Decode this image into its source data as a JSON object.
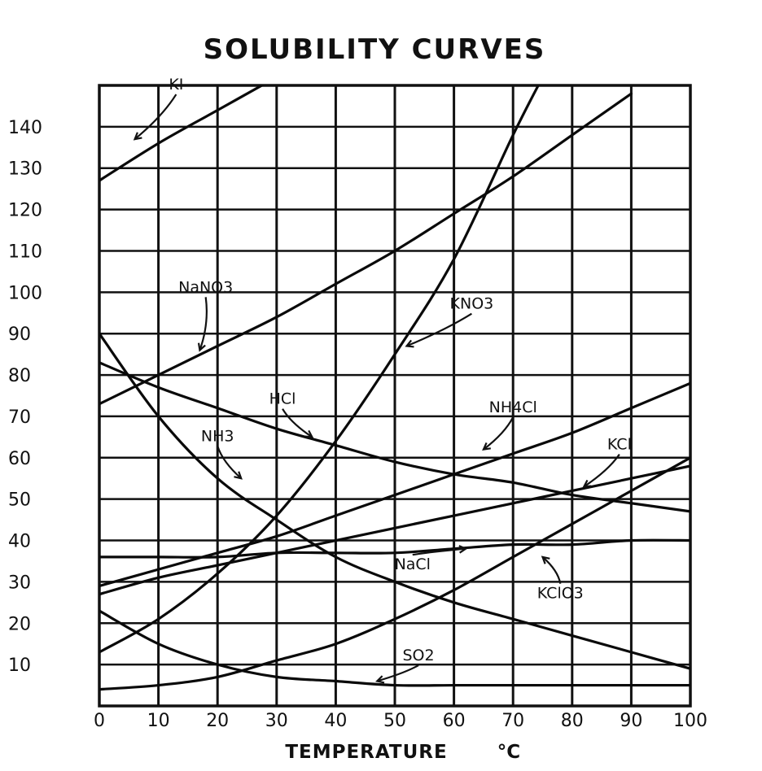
{
  "chart_data": {
    "type": "line",
    "title": "SOLUBILITY CURVES",
    "xlabel": "TEMPERATURE",
    "xunit": "°C",
    "ylabel": "",
    "xlim": [
      0,
      100
    ],
    "ylim": [
      0,
      150
    ],
    "grid": true,
    "x_ticks": [
      "0",
      "10",
      "20",
      "30",
      "40",
      "50",
      "60",
      "70",
      "80",
      "90",
      "100"
    ],
    "y_ticks": [
      {
        "value": 140,
        "label": "140"
      },
      {
        "value": 130,
        "label": "130"
      },
      {
        "value": 120,
        "label": "120"
      },
      {
        "value": 110,
        "label": "110"
      },
      {
        "value": 100,
        "label": "100"
      },
      {
        "value": 90,
        "label": "90"
      },
      {
        "value": 80,
        "label": "80"
      },
      {
        "value": 70,
        "label": "70"
      },
      {
        "value": 60,
        "label": "60"
      },
      {
        "value": 50,
        "label": "50"
      },
      {
        "value": 40,
        "label": "40"
      },
      {
        "value": 30,
        "label": "30"
      },
      {
        "value": 20,
        "label": "20"
      },
      {
        "value": 10,
        "label": "10"
      }
    ],
    "series": [
      {
        "name": "KI",
        "points": [
          [
            0,
            127
          ],
          [
            10,
            136
          ],
          [
            20,
            144
          ],
          [
            30,
            152
          ]
        ],
        "label_at": [
          13,
          149
        ],
        "arrow_to": [
          6,
          137
        ]
      },
      {
        "name": "NaNO3",
        "points": [
          [
            0,
            73
          ],
          [
            10,
            80
          ],
          [
            20,
            87
          ],
          [
            30,
            94
          ],
          [
            40,
            102
          ],
          [
            50,
            110
          ],
          [
            60,
            119
          ],
          [
            70,
            128
          ],
          [
            80,
            138
          ],
          [
            90,
            148
          ]
        ],
        "label_at": [
          18,
          100
        ],
        "arrow_to": [
          17,
          86
        ]
      },
      {
        "name": "KNO3",
        "points": [
          [
            0,
            13
          ],
          [
            10,
            21
          ],
          [
            20,
            32
          ],
          [
            30,
            46
          ],
          [
            40,
            64
          ],
          [
            50,
            85
          ],
          [
            60,
            108
          ],
          [
            70,
            138
          ],
          [
            75,
            152
          ]
        ],
        "label_at": [
          63,
          96
        ],
        "arrow_to": [
          52,
          87
        ]
      },
      {
        "name": "HCl",
        "points": [
          [
            0,
            83
          ],
          [
            10,
            77
          ],
          [
            20,
            72
          ],
          [
            30,
            67
          ],
          [
            40,
            63
          ],
          [
            50,
            59
          ],
          [
            60,
            56
          ],
          [
            70,
            54
          ],
          [
            80,
            51
          ],
          [
            90,
            49
          ],
          [
            100,
            47
          ]
        ],
        "label_at": [
          31,
          73
        ],
        "arrow_to": [
          36,
          65
        ]
      },
      {
        "name": "NH4Cl",
        "points": [
          [
            0,
            29
          ],
          [
            10,
            33
          ],
          [
            20,
            37
          ],
          [
            30,
            41
          ],
          [
            40,
            46
          ],
          [
            50,
            51
          ],
          [
            60,
            56
          ],
          [
            70,
            61
          ],
          [
            80,
            66
          ],
          [
            90,
            72
          ],
          [
            100,
            78
          ]
        ],
        "label_at": [
          70,
          71
        ],
        "arrow_to": [
          65,
          62
        ]
      },
      {
        "name": "KCl",
        "points": [
          [
            0,
            27
          ],
          [
            10,
            31
          ],
          [
            20,
            34
          ],
          [
            30,
            37
          ],
          [
            40,
            40
          ],
          [
            50,
            43
          ],
          [
            60,
            46
          ],
          [
            70,
            49
          ],
          [
            80,
            52
          ],
          [
            90,
            55
          ],
          [
            100,
            58
          ]
        ],
        "label_at": [
          88,
          62
        ],
        "arrow_to": [
          82,
          53
        ]
      },
      {
        "name": "NH3",
        "points": [
          [
            0,
            90
          ],
          [
            10,
            70
          ],
          [
            20,
            55
          ],
          [
            30,
            45
          ],
          [
            40,
            36
          ],
          [
            50,
            30
          ],
          [
            60,
            25
          ],
          [
            70,
            21
          ],
          [
            80,
            17
          ],
          [
            90,
            13
          ],
          [
            100,
            9
          ]
        ],
        "label_at": [
          20,
          64
        ],
        "arrow_to": [
          24,
          55
        ]
      },
      {
        "name": "NaCl",
        "points": [
          [
            0,
            36
          ],
          [
            10,
            36
          ],
          [
            20,
            36
          ],
          [
            30,
            37
          ],
          [
            40,
            37
          ],
          [
            50,
            37
          ],
          [
            60,
            38
          ],
          [
            70,
            39
          ],
          [
            80,
            39
          ],
          [
            90,
            40
          ],
          [
            100,
            40
          ]
        ],
        "label_at": [
          53,
          33
        ],
        "arrow_to": [
          62,
          38
        ]
      },
      {
        "name": "KClO3",
        "points": [
          [
            0,
            4
          ],
          [
            10,
            5
          ],
          [
            20,
            7
          ],
          [
            30,
            11
          ],
          [
            40,
            15
          ],
          [
            50,
            21
          ],
          [
            60,
            28
          ],
          [
            70,
            36
          ],
          [
            80,
            44
          ],
          [
            90,
            52
          ],
          [
            100,
            60
          ]
        ],
        "label_at": [
          78,
          26
        ],
        "arrow_to": [
          75,
          36
        ]
      },
      {
        "name": "SO2",
        "points": [
          [
            0,
            23
          ],
          [
            10,
            15
          ],
          [
            20,
            10
          ],
          [
            30,
            7
          ],
          [
            40,
            6
          ],
          [
            50,
            5
          ],
          [
            60,
            5
          ],
          [
            70,
            5
          ],
          [
            80,
            5
          ],
          [
            90,
            5
          ],
          [
            100,
            5
          ]
        ],
        "label_at": [
          54,
          11
        ],
        "arrow_to": [
          47,
          6
        ]
      }
    ]
  }
}
